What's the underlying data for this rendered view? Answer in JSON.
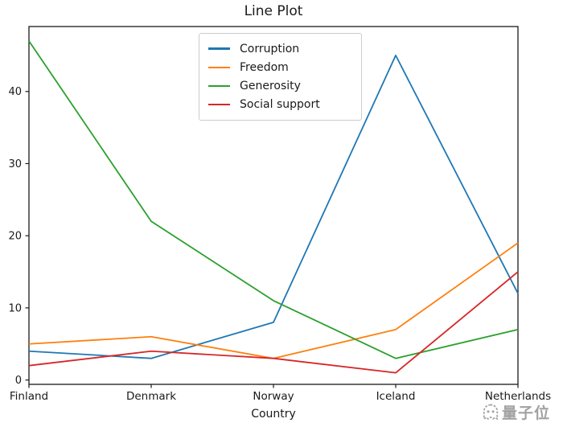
{
  "figure": {
    "title": "Line Plot",
    "xlabel": "Country",
    "watermark": {
      "text": "量子位",
      "icon": "qbitai-ghost-logo",
      "color": "#8a8a8a"
    }
  },
  "chart_data": {
    "type": "line",
    "title": "Line Plot",
    "xlabel": "Country",
    "ylabel": "",
    "categories": [
      "Finland",
      "Denmark",
      "Norway",
      "Iceland",
      "Netherlands"
    ],
    "series": [
      {
        "name": "Corruption",
        "color": "#1f77b4",
        "values": [
          4,
          3,
          8,
          45,
          12
        ]
      },
      {
        "name": "Freedom",
        "color": "#ff7f0e",
        "values": [
          5,
          6,
          3,
          7,
          19
        ]
      },
      {
        "name": "Generosity",
        "color": "#2ca02c",
        "values": [
          47,
          22,
          11,
          3,
          7
        ]
      },
      {
        "name": "Social support",
        "color": "#d62728",
        "values": [
          2,
          4,
          3,
          1,
          15
        ]
      }
    ],
    "yticks": [
      0,
      10,
      20,
      30,
      40
    ],
    "ylim": [
      -0.6,
      49.0
    ],
    "xlim": [
      0,
      4
    ],
    "grid": false,
    "legend_position": "upper-center-inside",
    "axis_color": "#1a1a1a"
  }
}
